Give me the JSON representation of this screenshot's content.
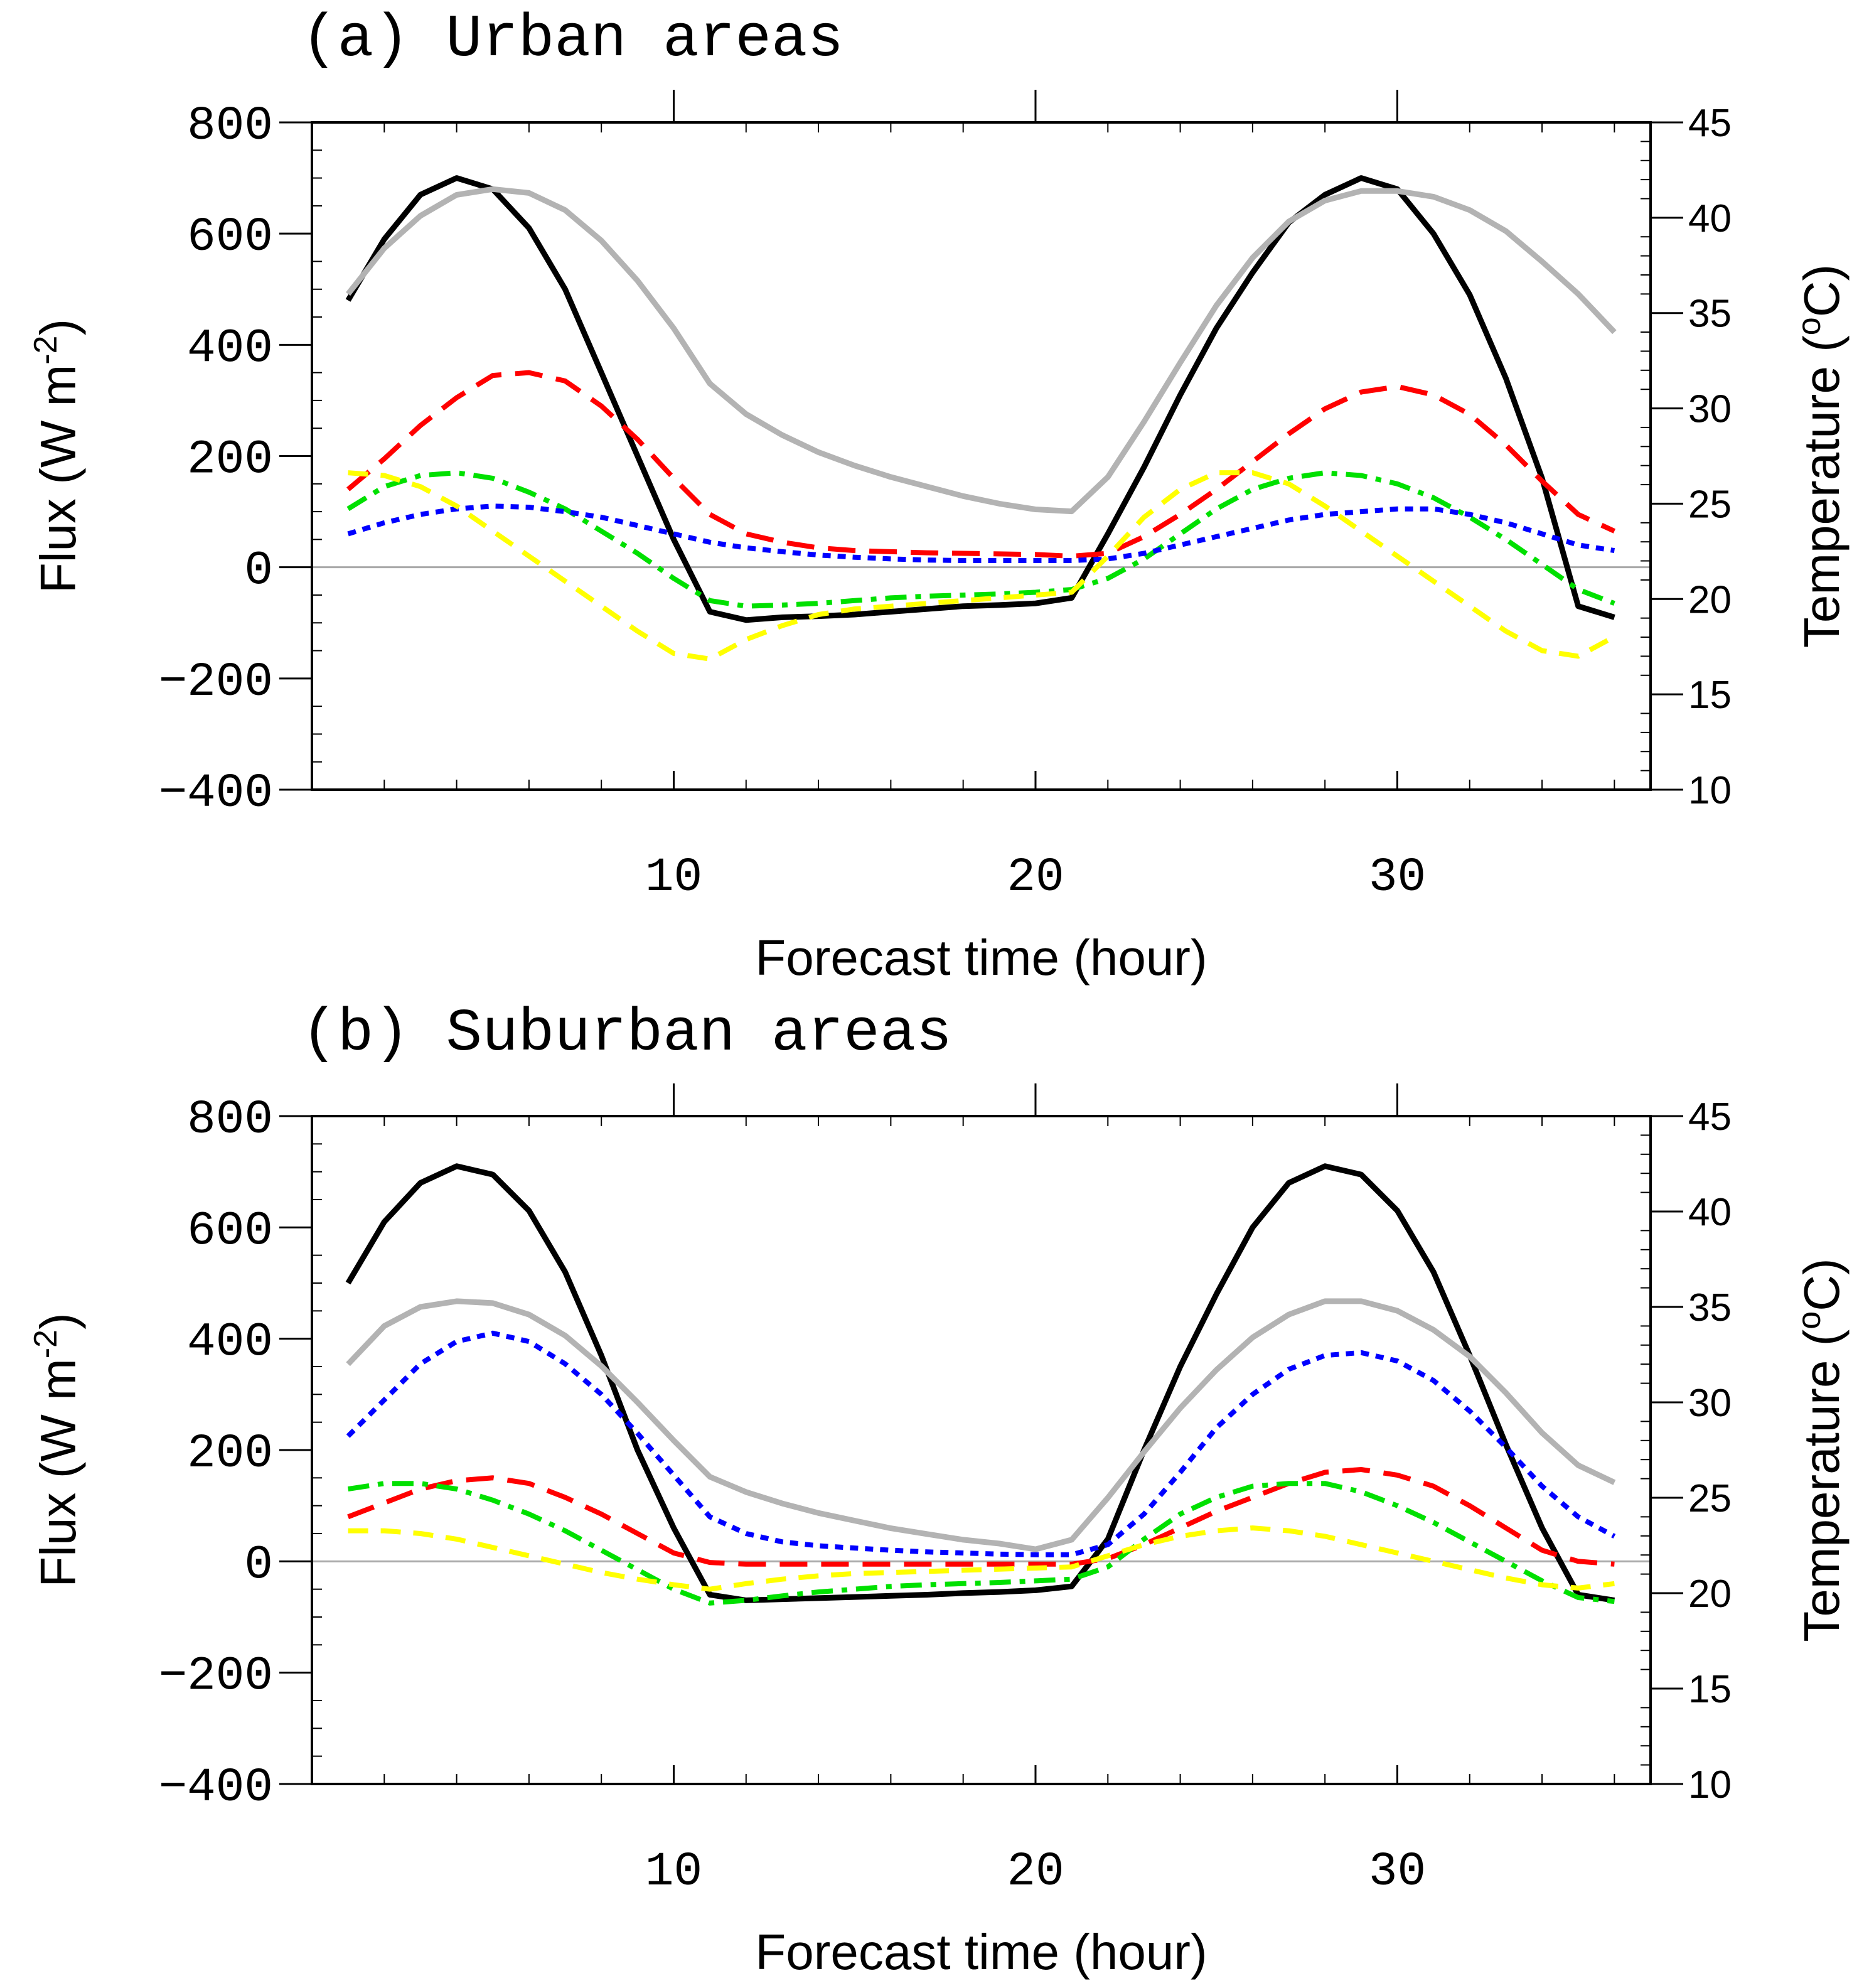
{
  "chart_data": [
    {
      "type": "line",
      "title": "(a) Urban areas",
      "xlabel": "Forecast time (hour)",
      "ylabel": "Flux (W m",
      "ylabel_sup": "-2",
      "ylabel_close": ")",
      "y2label": "Temperature (",
      "y2label_sup": "o",
      "y2label_close": "C)",
      "xlim": [
        0,
        37
      ],
      "ylim": [
        -400,
        800
      ],
      "y2lim": [
        10,
        45
      ],
      "xticks": [
        "10",
        "20",
        "30"
      ],
      "yticks": [
        "800",
        "600",
        "400",
        "200",
        "0",
        "−200",
        "−400"
      ],
      "y2ticks": [
        "45",
        "40",
        "35",
        "30",
        "25",
        "20",
        "15",
        "10"
      ],
      "x": [
        1,
        2,
        3,
        4,
        5,
        6,
        7,
        8,
        9,
        10,
        11,
        12,
        13,
        14,
        15,
        16,
        17,
        18,
        19,
        20,
        21,
        22,
        23,
        24,
        25,
        26,
        27,
        28,
        29,
        30,
        31,
        32,
        33,
        34,
        35,
        36
      ],
      "series": [
        {
          "name": "black",
          "axis": "left",
          "color": "#000000",
          "dash": "solid",
          "width": 9,
          "values": [
            480,
            590,
            670,
            700,
            680,
            610,
            500,
            350,
            200,
            50,
            -80,
            -95,
            -90,
            -88,
            -85,
            -80,
            -75,
            -70,
            -68,
            -65,
            -55,
            60,
            180,
            310,
            430,
            530,
            620,
            670,
            700,
            680,
            600,
            490,
            340,
            160,
            -70,
            -90
          ]
        },
        {
          "name": "gray",
          "axis": "right",
          "color": "#b3b3b3",
          "dash": "solid",
          "width": 9,
          "values": [
            36,
            38.4,
            40.1,
            41.2,
            41.5,
            41.3,
            40.4,
            38.8,
            36.7,
            34.2,
            31.3,
            29.7,
            28.6,
            27.7,
            27,
            26.4,
            25.9,
            25.4,
            25,
            24.7,
            24.6,
            26.4,
            29.3,
            32.4,
            35.4,
            37.9,
            39.8,
            40.9,
            41.4,
            41.4,
            41.1,
            40.4,
            39.3,
            37.7,
            36,
            34
          ]
        },
        {
          "name": "red",
          "axis": "left",
          "color": "#ff0000",
          "dash": "long-dash",
          "width": 8,
          "values": [
            140,
            195,
            255,
            305,
            345,
            350,
            335,
            290,
            230,
            160,
            95,
            60,
            45,
            35,
            30,
            28,
            26,
            25,
            24,
            23,
            20,
            25,
            55,
            95,
            140,
            190,
            240,
            285,
            315,
            325,
            310,
            275,
            220,
            155,
            95,
            65
          ]
        },
        {
          "name": "green",
          "axis": "left",
          "color": "#00e000",
          "dash": "dash-dot",
          "width": 8,
          "values": [
            105,
            145,
            165,
            170,
            160,
            135,
            105,
            65,
            25,
            -20,
            -60,
            -70,
            -68,
            -65,
            -60,
            -55,
            -52,
            -50,
            -48,
            -45,
            -40,
            -20,
            15,
            60,
            105,
            140,
            160,
            170,
            165,
            150,
            125,
            90,
            50,
            5,
            -40,
            -65
          ]
        },
        {
          "name": "blue",
          "axis": "left",
          "color": "#0000ff",
          "dash": "dotted",
          "width": 8,
          "values": [
            60,
            80,
            95,
            105,
            110,
            108,
            100,
            90,
            75,
            60,
            45,
            35,
            28,
            22,
            18,
            15,
            13,
            12,
            12,
            12,
            12,
            15,
            25,
            40,
            55,
            70,
            85,
            95,
            100,
            105,
            105,
            95,
            80,
            60,
            40,
            30
          ]
        },
        {
          "name": "yellow",
          "axis": "left",
          "color": "#ffff00",
          "dash": "dashed",
          "width": 8,
          "values": [
            170,
            165,
            145,
            110,
            65,
            20,
            -25,
            -70,
            -115,
            -155,
            -165,
            -130,
            -105,
            -85,
            -75,
            -70,
            -65,
            -60,
            -55,
            -50,
            -45,
            20,
            90,
            140,
            170,
            170,
            150,
            110,
            65,
            20,
            -25,
            -70,
            -115,
            -150,
            -160,
            -125
          ]
        }
      ]
    },
    {
      "type": "line",
      "title": "(b) Suburban areas",
      "xlabel": "Forecast time (hour)",
      "ylabel": "Flux (W m",
      "ylabel_sup": "-2",
      "ylabel_close": ")",
      "y2label": "Temperature (",
      "y2label_sup": "o",
      "y2label_close": "C)",
      "xlim": [
        0,
        37
      ],
      "ylim": [
        -400,
        800
      ],
      "y2lim": [
        10,
        45
      ],
      "xticks": [
        "10",
        "20",
        "30"
      ],
      "yticks": [
        "800",
        "600",
        "400",
        "200",
        "0",
        "−200",
        "−400"
      ],
      "y2ticks": [
        "45",
        "40",
        "35",
        "30",
        "25",
        "20",
        "15",
        "10"
      ],
      "x": [
        1,
        2,
        3,
        4,
        5,
        6,
        7,
        8,
        9,
        10,
        11,
        12,
        13,
        14,
        15,
        16,
        17,
        18,
        19,
        20,
        21,
        22,
        23,
        24,
        25,
        26,
        27,
        28,
        29,
        30,
        31,
        32,
        33,
        34,
        35,
        36
      ],
      "series": [
        {
          "name": "black",
          "axis": "left",
          "color": "#000000",
          "dash": "solid",
          "width": 9,
          "values": [
            500,
            610,
            680,
            710,
            695,
            630,
            520,
            370,
            200,
            60,
            -60,
            -70,
            -68,
            -66,
            -64,
            -62,
            -60,
            -57,
            -55,
            -52,
            -45,
            40,
            200,
            350,
            480,
            600,
            680,
            710,
            695,
            630,
            520,
            370,
            210,
            60,
            -60,
            -70
          ]
        },
        {
          "name": "gray",
          "axis": "right",
          "color": "#b3b3b3",
          "dash": "solid",
          "width": 9,
          "values": [
            32,
            34,
            35,
            35.3,
            35.2,
            34.6,
            33.5,
            31.9,
            30,
            28,
            26.1,
            25.3,
            24.7,
            24.2,
            23.8,
            23.4,
            23.1,
            22.8,
            22.6,
            22.3,
            22.8,
            25,
            27.4,
            29.7,
            31.7,
            33.4,
            34.6,
            35.3,
            35.3,
            34.8,
            33.8,
            32.4,
            30.5,
            28.4,
            26.7,
            25.8
          ]
        },
        {
          "name": "red",
          "axis": "left",
          "color": "#ff0000",
          "dash": "long-dash",
          "width": 8,
          "values": [
            80,
            105,
            130,
            145,
            150,
            140,
            115,
            85,
            50,
            15,
            -2,
            -5,
            -5,
            -5,
            -5,
            -5,
            -5,
            -5,
            -5,
            -5,
            -5,
            5,
            30,
            60,
            90,
            115,
            140,
            160,
            165,
            155,
            135,
            100,
            60,
            20,
            0,
            -5
          ]
        },
        {
          "name": "green",
          "axis": "left",
          "color": "#00e000",
          "dash": "dash-dot",
          "width": 8,
          "values": [
            130,
            140,
            140,
            130,
            110,
            85,
            55,
            20,
            -15,
            -50,
            -75,
            -70,
            -62,
            -55,
            -50,
            -45,
            -42,
            -40,
            -38,
            -35,
            -32,
            -10,
            40,
            85,
            115,
            135,
            140,
            140,
            125,
            100,
            70,
            35,
            0,
            -35,
            -65,
            -72
          ]
        },
        {
          "name": "blue",
          "axis": "left",
          "color": "#0000ff",
          "dash": "dotted",
          "width": 8,
          "values": [
            225,
            290,
            355,
            395,
            410,
            395,
            355,
            300,
            230,
            155,
            80,
            50,
            35,
            28,
            24,
            20,
            17,
            15,
            13,
            12,
            12,
            30,
            85,
            160,
            240,
            300,
            345,
            370,
            375,
            360,
            325,
            270,
            205,
            135,
            80,
            45
          ]
        },
        {
          "name": "yellow",
          "axis": "left",
          "color": "#ffff00",
          "dash": "dashed",
          "width": 8,
          "values": [
            55,
            55,
            50,
            40,
            25,
            10,
            -5,
            -20,
            -32,
            -42,
            -50,
            -40,
            -32,
            -26,
            -22,
            -20,
            -18,
            -16,
            -14,
            -12,
            -10,
            10,
            30,
            45,
            55,
            60,
            55,
            45,
            30,
            15,
            0,
            -15,
            -30,
            -42,
            -48,
            -40
          ]
        }
      ]
    }
  ]
}
